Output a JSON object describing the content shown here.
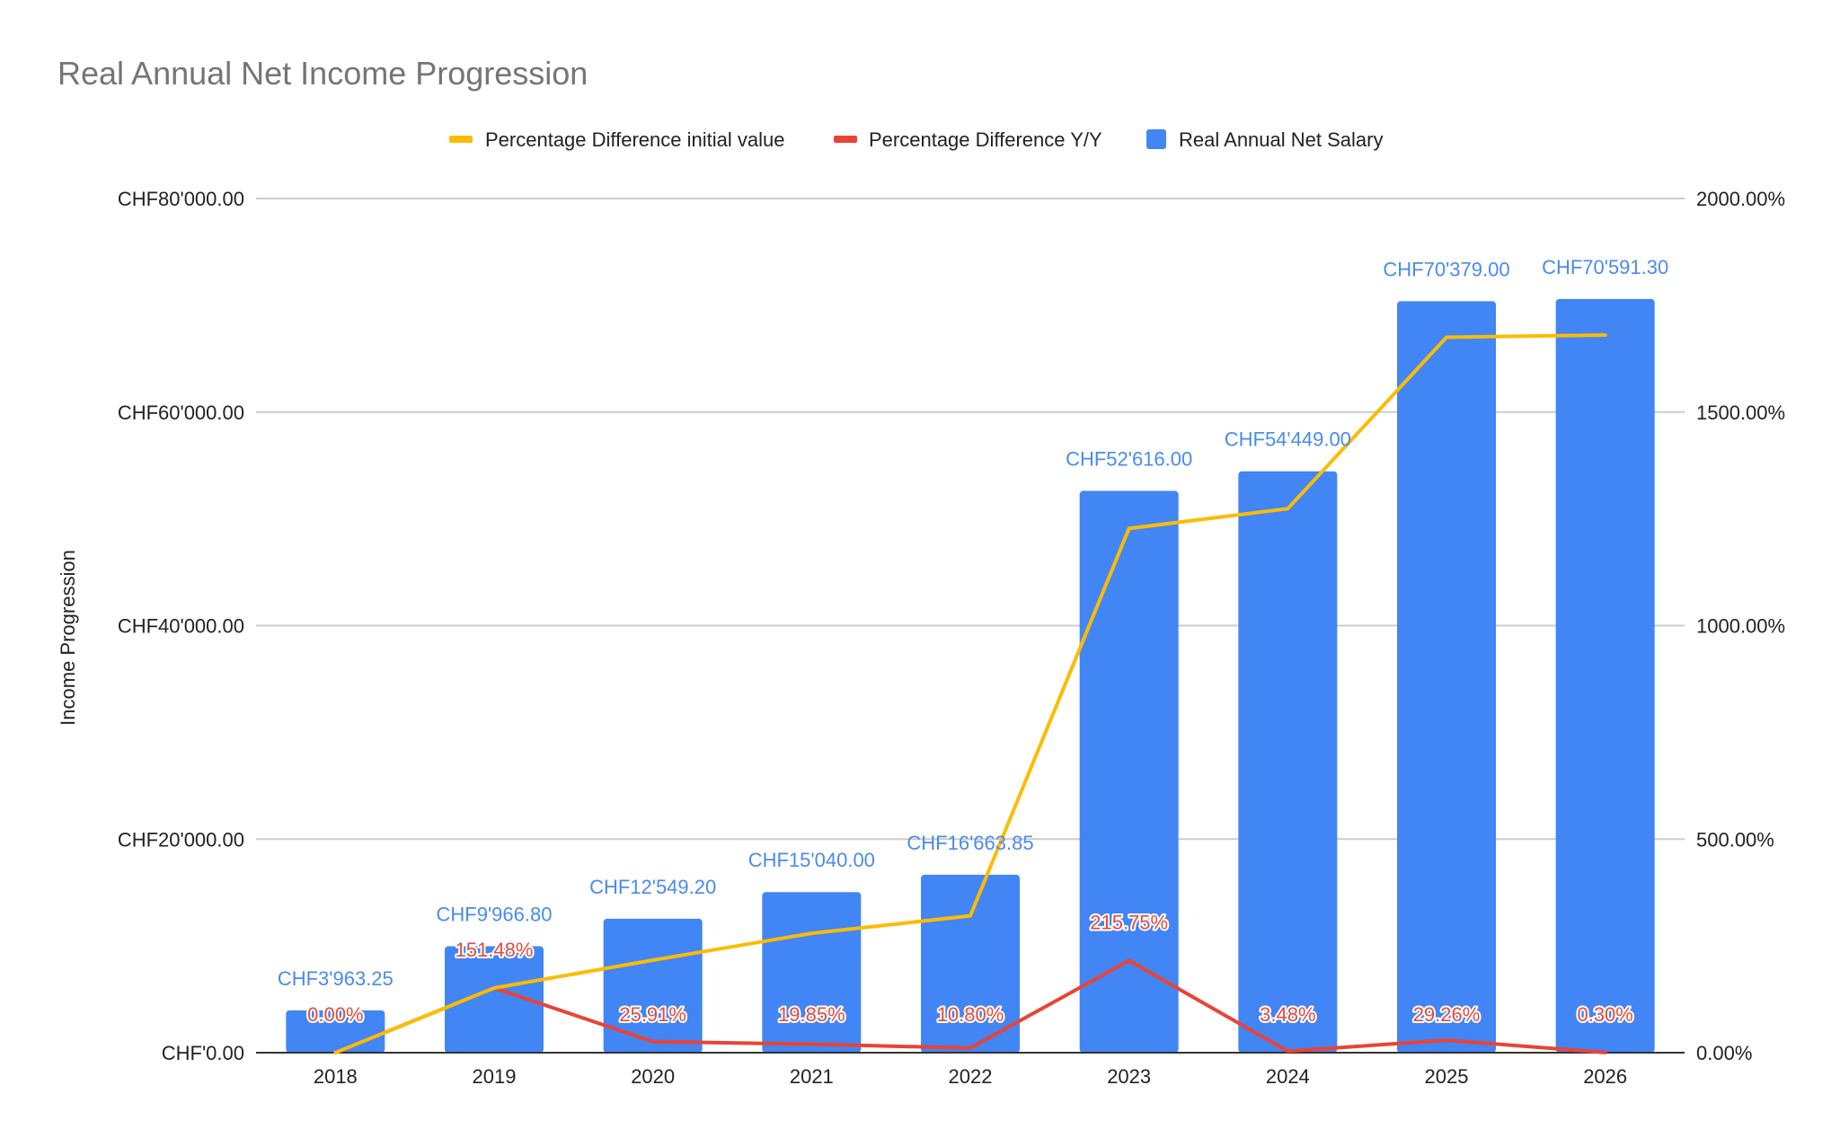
{
  "chart_data": {
    "type": "bar",
    "title": "Real Annual Net Income Progression",
    "xlabel": "",
    "ylabel": "Income Progression",
    "categories": [
      "2018",
      "2019",
      "2020",
      "2021",
      "2022",
      "2023",
      "2024",
      "2025",
      "2026"
    ],
    "ylim": [
      0,
      80000
    ],
    "y2lim": [
      0,
      2000
    ],
    "y_ticks": [
      "CHF'0.00",
      "CHF20'000.00",
      "CHF40'000.00",
      "CHF60'000.00",
      "CHF80'000.00"
    ],
    "y2_ticks": [
      "0.00%",
      "500.00%",
      "1000.00%",
      "1500.00%",
      "2000.00%"
    ],
    "grid": true,
    "legend_position": "top",
    "series": [
      {
        "name": "Percentage Difference initial value",
        "type": "line",
        "axis": "right",
        "color": "#fbbc04",
        "values": [
          0,
          151.48,
          216.59,
          279.45,
          320.46,
          1227.47,
          1273.82,
          1675.07,
          1680.43
        ]
      },
      {
        "name": "Percentage Difference Y/Y",
        "type": "line",
        "axis": "right",
        "color": "#ea4335",
        "values": [
          0,
          151.48,
          25.91,
          19.85,
          10.8,
          215.75,
          3.48,
          29.26,
          0.3
        ],
        "labels": [
          "0.00%",
          "151.48%",
          "25.91%",
          "19.85%",
          "10.80%",
          "215.75%",
          "3.48%",
          "29.26%",
          "0.30%"
        ]
      },
      {
        "name": "Real Annual Net Salary",
        "type": "bar",
        "axis": "left",
        "color": "#4285f4",
        "values": [
          3963.25,
          9966.8,
          12549.2,
          15040.0,
          16663.85,
          52616.0,
          54449.0,
          70379.0,
          70591.3
        ],
        "labels": [
          "CHF3'963.25",
          "CHF9'966.80",
          "CHF12'549.20",
          "CHF15'040.00",
          "CHF16'663.85",
          "CHF52'616.00",
          "CHF54'449.00",
          "CHF70'379.00",
          "CHF70'591.30"
        ]
      }
    ]
  }
}
